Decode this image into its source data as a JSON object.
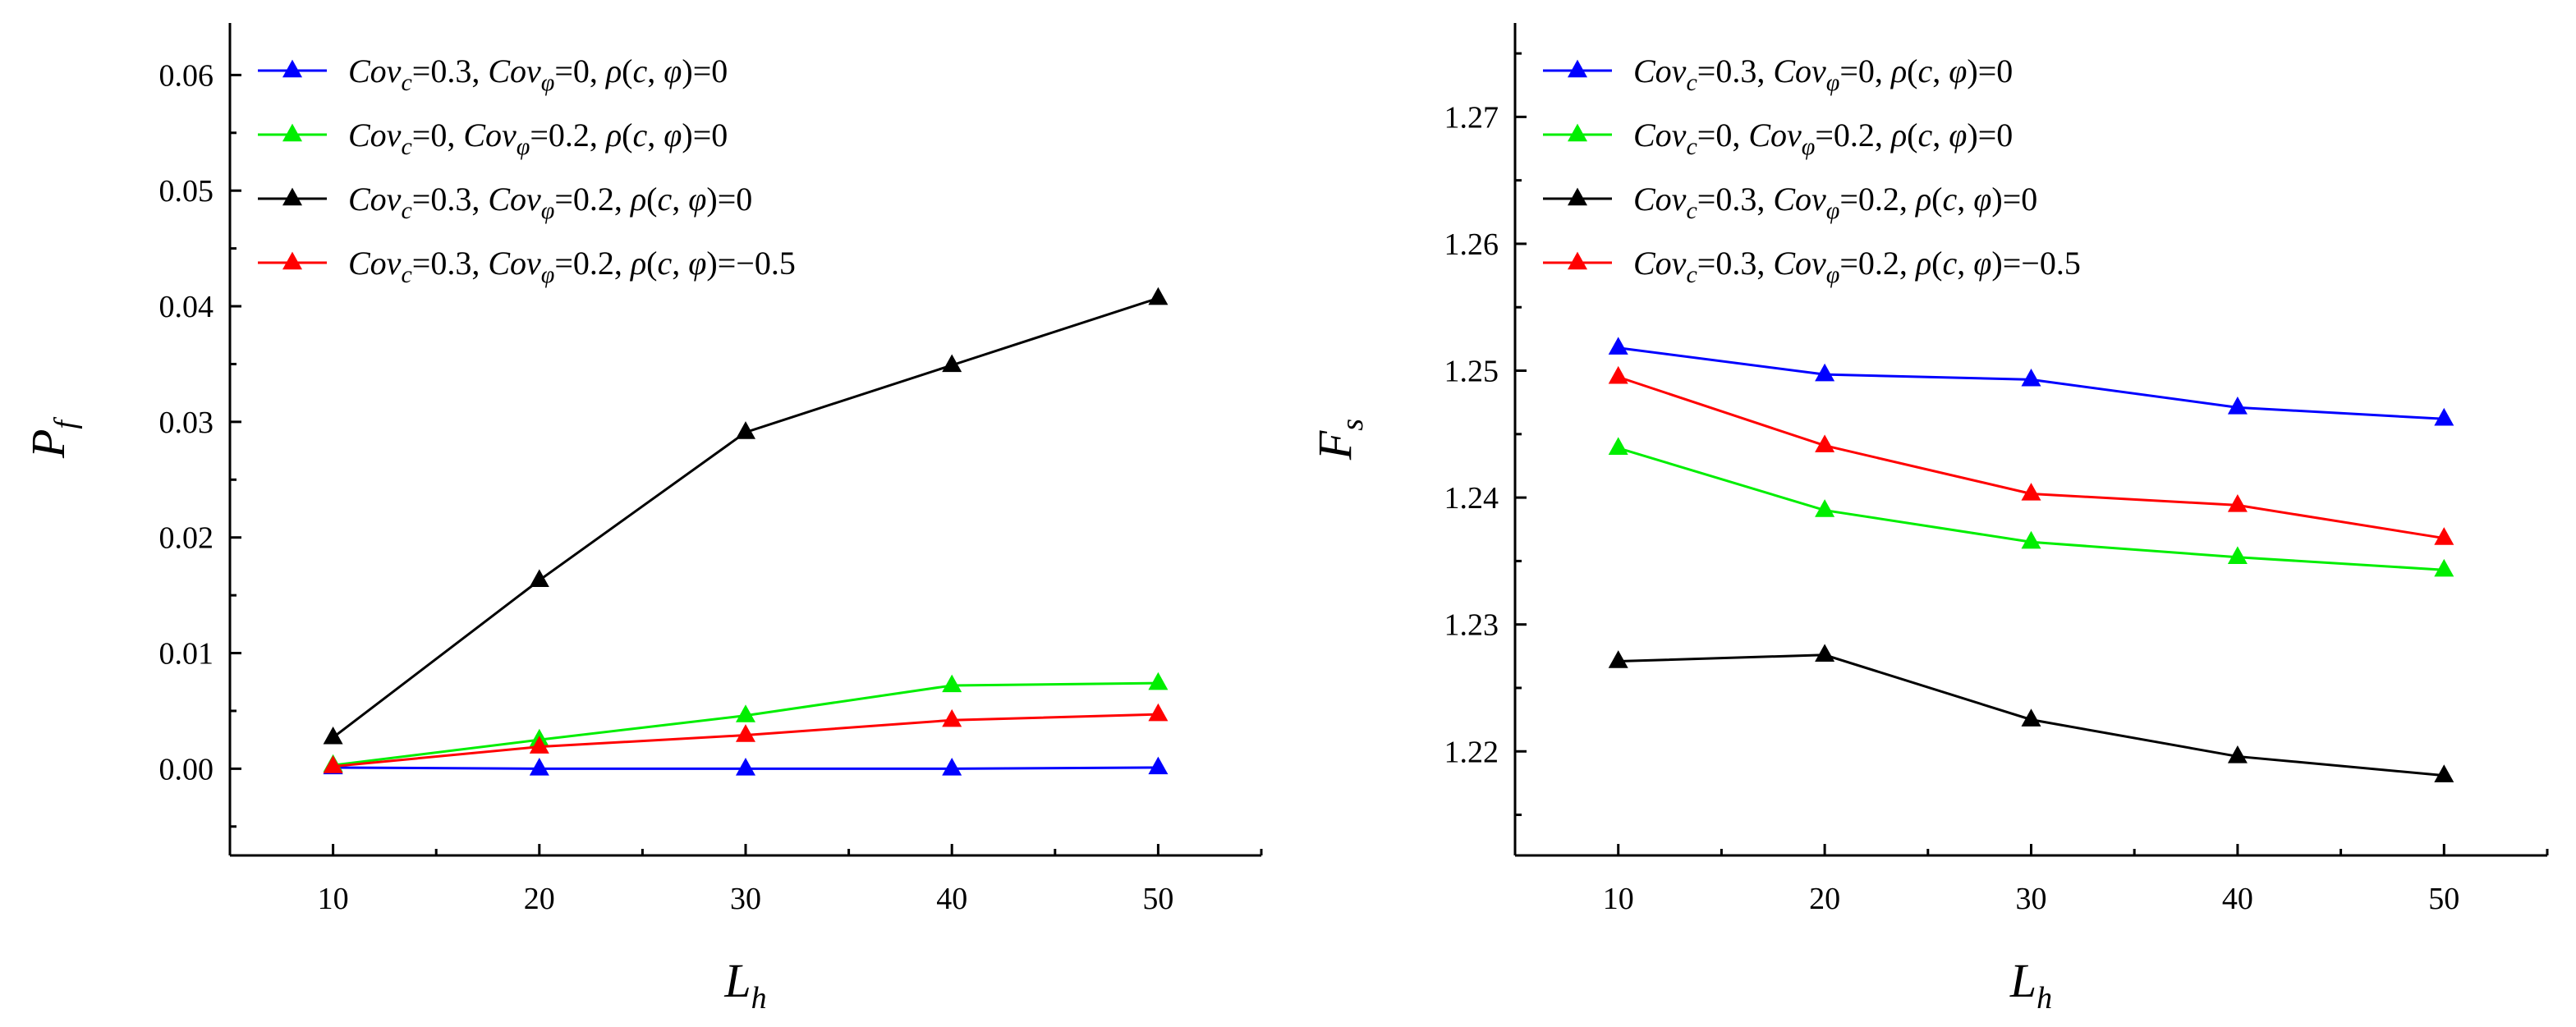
{
  "chart_data": [
    {
      "type": "line",
      "id": "pf",
      "ylabel": "P",
      "ylabel_sub": "f",
      "xlabel": "L",
      "xlabel_sub": "h",
      "xlim": [
        5,
        55
      ],
      "ylim": [
        -0.0075,
        0.0645
      ],
      "xticks": [
        10,
        20,
        30,
        40,
        50
      ],
      "xtick_labels": [
        "10",
        "20",
        "30",
        "40",
        "50"
      ],
      "yticks": [
        0.0,
        0.01,
        0.02,
        0.03,
        0.04,
        0.05,
        0.06
      ],
      "ytick_labels": [
        "0.00",
        "0.01",
        "0.02",
        "0.03",
        "0.04",
        "0.05",
        "0.06"
      ],
      "legend_position": "top-left",
      "x": [
        10,
        20,
        30,
        40,
        50
      ],
      "series": [
        {
          "name": "Cov_c=0.3, Cov_φ=0, ρ(c, φ)=0",
          "color": "#0000ff",
          "values": [
            0.0001,
            0.0,
            0.0,
            0.0,
            0.0001
          ]
        },
        {
          "name": "Cov_c=0, Cov_φ=0.2, ρ(c, φ)=0",
          "color": "#00ee00",
          "values": [
            0.0003,
            0.0025,
            0.0046,
            0.0072,
            0.0074
          ]
        },
        {
          "name": "Cov_c=0.3, Cov_φ=0.2, ρ(c, φ)=0",
          "color": "#000000",
          "values": [
            0.0027,
            0.0163,
            0.0291,
            0.0349,
            0.0407
          ]
        },
        {
          "name": "Cov_c=0.3, Cov_φ=0.2, ρ(c, φ)=−0.5",
          "color": "#ff0000",
          "values": [
            0.0002,
            0.0019,
            0.0029,
            0.0042,
            0.0047
          ]
        }
      ]
    },
    {
      "type": "line",
      "id": "fs",
      "ylabel": "F",
      "ylabel_sub": "s",
      "xlabel": "L",
      "xlabel_sub": "h",
      "xlim": [
        5,
        55
      ],
      "ylim": [
        1.2118,
        1.2774
      ],
      "xticks": [
        10,
        20,
        30,
        40,
        50
      ],
      "xtick_labels": [
        "10",
        "20",
        "30",
        "40",
        "50"
      ],
      "yticks": [
        1.22,
        1.23,
        1.24,
        1.25,
        1.26,
        1.27
      ],
      "ytick_labels": [
        "1.22",
        "1.23",
        "1.24",
        "1.25",
        "1.26",
        "1.27"
      ],
      "legend_position": "top-left",
      "x": [
        10,
        20,
        30,
        40,
        50
      ],
      "series": [
        {
          "name": "Cov_c=0.3, Cov_φ=0, ρ(c, φ)=0",
          "color": "#0000ff",
          "values": [
            1.2518,
            1.2497,
            1.2493,
            1.2471,
            1.2462
          ]
        },
        {
          "name": "Cov_c=0, Cov_φ=0.2, ρ(c, φ)=0",
          "color": "#00ee00",
          "values": [
            1.2439,
            1.239,
            1.2365,
            1.2353,
            1.2343
          ]
        },
        {
          "name": "Cov_c=0.3, Cov_φ=0.2, ρ(c, φ)=0",
          "color": "#000000",
          "values": [
            1.2271,
            1.2276,
            1.2225,
            1.2196,
            1.2181
          ]
        },
        {
          "name": "Cov_c=0.3, Cov_φ=0.2, ρ(c, φ)=−0.5",
          "color": "#ff0000",
          "values": [
            1.2495,
            1.2441,
            1.2403,
            1.2394,
            1.2368
          ]
        }
      ]
    }
  ],
  "legend_entries": [
    [
      {
        "t": "Cov",
        "i": true
      },
      {
        "t": "c",
        "i": true,
        "sub": true
      },
      {
        "t": "=0.3, "
      },
      {
        "t": "Cov",
        "i": true
      },
      {
        "t": "φ",
        "i": true,
        "sub": true
      },
      {
        "t": "=0, "
      },
      {
        "t": "ρ",
        "i": true
      },
      {
        "t": "("
      },
      {
        "t": "c",
        "i": true
      },
      {
        "t": ", "
      },
      {
        "t": "φ",
        "i": true
      },
      {
        "t": ")=0"
      }
    ],
    [
      {
        "t": "Cov",
        "i": true
      },
      {
        "t": "c",
        "i": true,
        "sub": true
      },
      {
        "t": "=0, "
      },
      {
        "t": "Cov",
        "i": true
      },
      {
        "t": "φ",
        "i": true,
        "sub": true
      },
      {
        "t": "=0.2, "
      },
      {
        "t": "ρ",
        "i": true
      },
      {
        "t": "("
      },
      {
        "t": "c",
        "i": true
      },
      {
        "t": ", "
      },
      {
        "t": "φ",
        "i": true
      },
      {
        "t": ")=0"
      }
    ],
    [
      {
        "t": "Cov",
        "i": true
      },
      {
        "t": "c",
        "i": true,
        "sub": true
      },
      {
        "t": "=0.3, "
      },
      {
        "t": "Cov",
        "i": true
      },
      {
        "t": "φ",
        "i": true,
        "sub": true
      },
      {
        "t": "=0.2, "
      },
      {
        "t": "ρ",
        "i": true
      },
      {
        "t": "("
      },
      {
        "t": "c",
        "i": true
      },
      {
        "t": ", "
      },
      {
        "t": "φ",
        "i": true
      },
      {
        "t": ")=0"
      }
    ],
    [
      {
        "t": "Cov",
        "i": true
      },
      {
        "t": "c",
        "i": true,
        "sub": true
      },
      {
        "t": "=0.3, "
      },
      {
        "t": "Cov",
        "i": true
      },
      {
        "t": "φ",
        "i": true,
        "sub": true
      },
      {
        "t": "=0.2, "
      },
      {
        "t": "ρ",
        "i": true
      },
      {
        "t": "("
      },
      {
        "t": "c",
        "i": true
      },
      {
        "t": ", "
      },
      {
        "t": "φ",
        "i": true
      },
      {
        "t": ")=−0.5"
      }
    ]
  ]
}
